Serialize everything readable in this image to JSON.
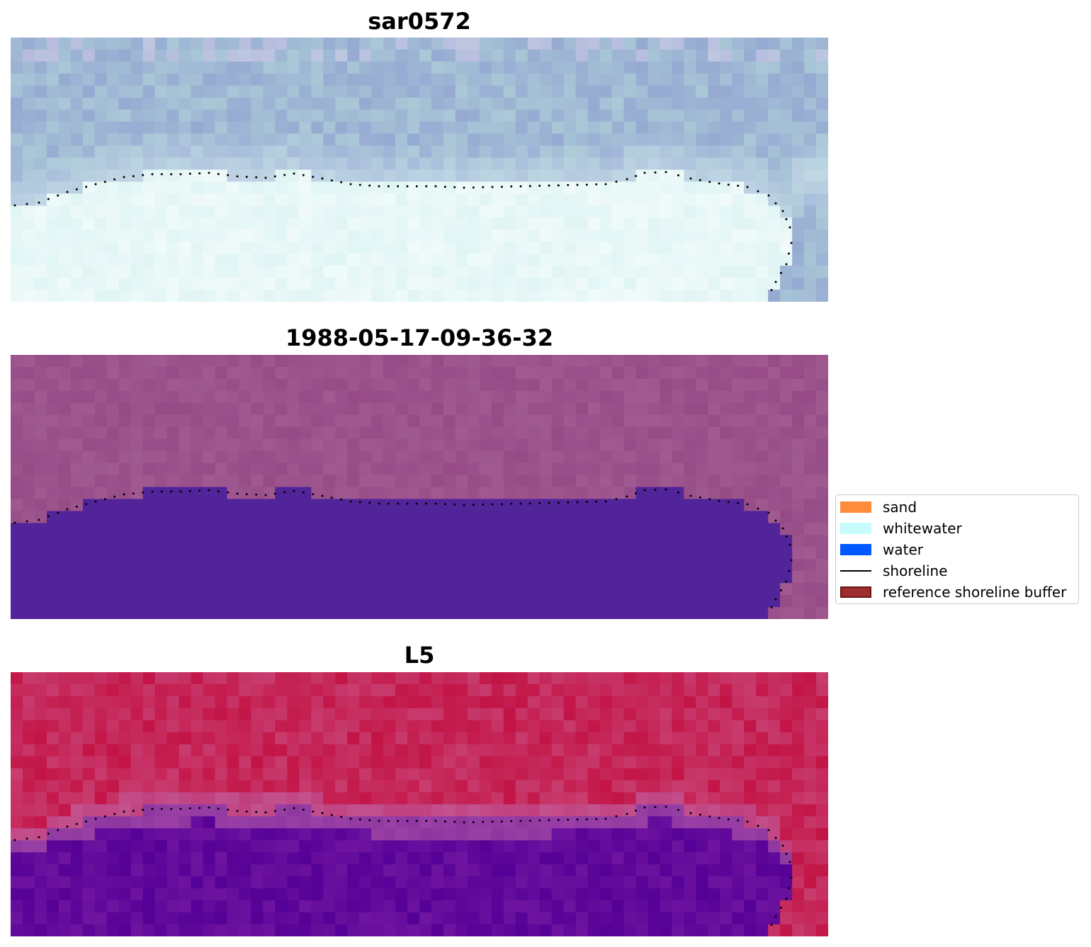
{
  "panels": [
    {
      "title": "sar0572",
      "style": "rgb"
    },
    {
      "title": "1988-05-17-09-36-32",
      "style": "classified"
    },
    {
      "title": "L5",
      "style": "index"
    }
  ],
  "legend": {
    "items": [
      {
        "label": "sand",
        "color": "#ff8c3c",
        "kind": "patch"
      },
      {
        "label": "whitewater",
        "color": "#c8fcfc",
        "kind": "patch"
      },
      {
        "label": "water",
        "color": "#0058ff",
        "kind": "patch"
      },
      {
        "label": "shoreline",
        "color": "#000000",
        "kind": "line"
      },
      {
        "label": "reference shoreline buffer",
        "color": "#9e2d2d",
        "kind": "patch-edged"
      }
    ]
  },
  "colors": {
    "water_class": "#52249a",
    "land_class": "#9a4f89",
    "shoreline_dots": "#000000"
  }
}
